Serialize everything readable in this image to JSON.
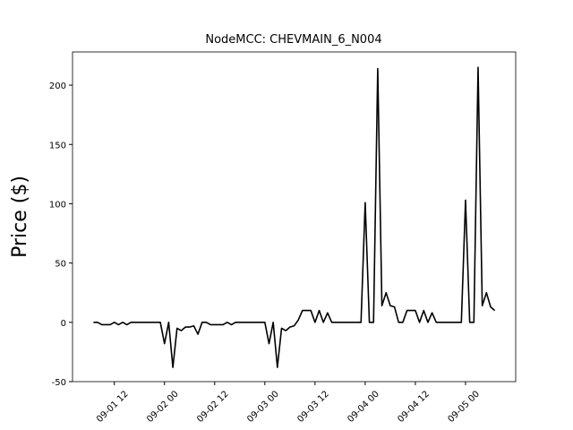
{
  "chart_data": {
    "type": "line",
    "title": "NodeMCC: CHEVMAIN_6_N004",
    "y_label": "Price ($)",
    "x": [
      "09-01 07",
      "09-01 08",
      "09-01 09",
      "09-01 10",
      "09-01 11",
      "09-01 12",
      "09-01 13",
      "09-01 14",
      "09-01 15",
      "09-01 16",
      "09-01 17",
      "09-01 18",
      "09-01 19",
      "09-01 20",
      "09-01 21",
      "09-01 22",
      "09-01 23",
      "09-02 00",
      "09-02 01",
      "09-02 02",
      "09-02 03",
      "09-02 04",
      "09-02 05",
      "09-02 06",
      "09-02 07",
      "09-02 08",
      "09-02 09",
      "09-02 10",
      "09-02 11",
      "09-02 12",
      "09-02 13",
      "09-02 14",
      "09-02 15",
      "09-02 16",
      "09-02 17",
      "09-02 18",
      "09-02 19",
      "09-02 20",
      "09-02 21",
      "09-02 22",
      "09-02 23",
      "09-03 00",
      "09-03 01",
      "09-03 02",
      "09-03 03",
      "09-03 04",
      "09-03 05",
      "09-03 06",
      "09-03 07",
      "09-03 08",
      "09-03 09",
      "09-03 10",
      "09-03 11",
      "09-03 12",
      "09-03 13",
      "09-03 14",
      "09-03 15",
      "09-03 16",
      "09-03 17",
      "09-03 18",
      "09-03 19",
      "09-03 20",
      "09-03 21",
      "09-03 22",
      "09-03 23",
      "09-04 00",
      "09-04 01",
      "09-04 02",
      "09-04 03",
      "09-04 04",
      "09-04 05",
      "09-04 06",
      "09-04 07",
      "09-04 08",
      "09-04 09",
      "09-04 10",
      "09-04 11",
      "09-04 12",
      "09-04 13",
      "09-04 14",
      "09-04 15",
      "09-04 16",
      "09-04 17",
      "09-04 18",
      "09-04 19",
      "09-04 20",
      "09-04 21",
      "09-04 22",
      "09-04 23",
      "09-05 00",
      "09-05 01",
      "09-05 02",
      "09-05 03",
      "09-05 04",
      "09-05 05",
      "09-05 06",
      "09-05 07"
    ],
    "series": [
      {
        "color": "#000000",
        "values": [
          0,
          0,
          -2,
          -2,
          -2,
          0,
          -2,
          0,
          -2,
          0,
          0,
          0,
          0,
          0,
          0,
          0,
          0,
          -18,
          0,
          -38,
          -5,
          -7,
          -4,
          -4,
          -3,
          -10,
          0,
          0,
          -2,
          -2,
          -2,
          -2,
          0,
          -2,
          0,
          0,
          0,
          0,
          0,
          0,
          0,
          0,
          -18,
          0,
          -38,
          -5,
          -7,
          -4,
          -3,
          2,
          10,
          10,
          10,
          0,
          10,
          0,
          8,
          0,
          0,
          0,
          0,
          0,
          0,
          0,
          0,
          101,
          0,
          0,
          214,
          14,
          25,
          14,
          13,
          0,
          0,
          10,
          10,
          10,
          0,
          10,
          0,
          8,
          0,
          0,
          0,
          0,
          0,
          0,
          0,
          103,
          0,
          0,
          215,
          14,
          25,
          13,
          10
        ]
      }
    ],
    "xlim": [
      "09-01 02",
      "09-05 12"
    ],
    "xticks": [
      "09-01 12",
      "09-02 00",
      "09-02 12",
      "09-03 00",
      "09-03 12",
      "09-04 00",
      "09-04 12",
      "09-05 00"
    ],
    "ylim": [
      -50,
      228
    ],
    "yticks": [
      -50,
      0,
      50,
      100,
      150,
      200
    ]
  }
}
